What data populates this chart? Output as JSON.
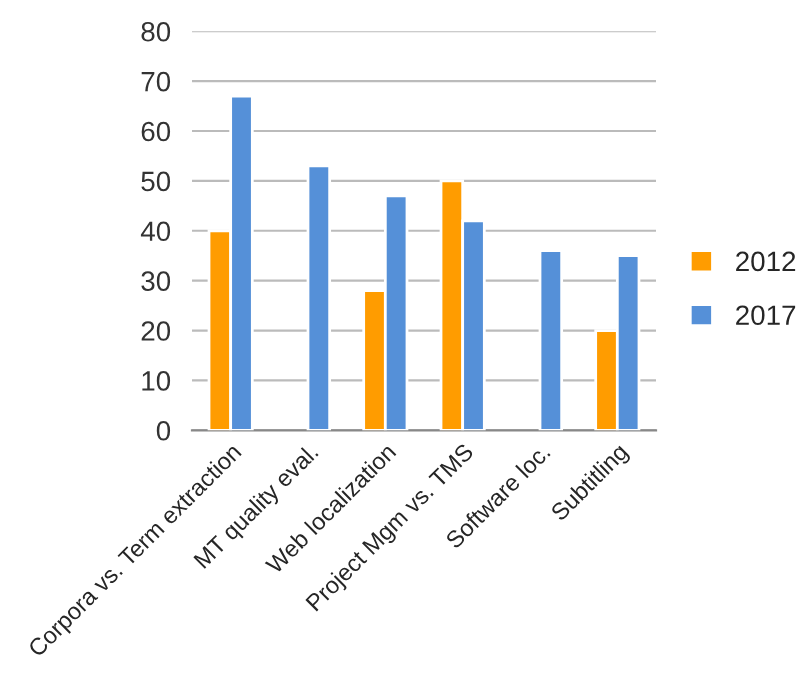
{
  "chart_data": {
    "type": "bar",
    "categories": [
      "Corpora vs. Term extraction",
      "MT quality eval.",
      "Web localization",
      "Project Mgm vs. TMS",
      "Software loc.",
      "Subtitling"
    ],
    "series": [
      {
        "name": "2012",
        "color": "#ff9c00",
        "values": [
          40,
          null,
          28,
          50,
          null,
          20
        ]
      },
      {
        "name": "2017",
        "color": "#5590d8",
        "values": [
          67,
          53,
          47,
          42,
          36,
          35
        ]
      }
    ],
    "ylim": [
      0,
      80
    ],
    "yticks": [
      0,
      10,
      20,
      30,
      40,
      50,
      60,
      70,
      80
    ],
    "grid": "y",
    "legend": "right"
  }
}
